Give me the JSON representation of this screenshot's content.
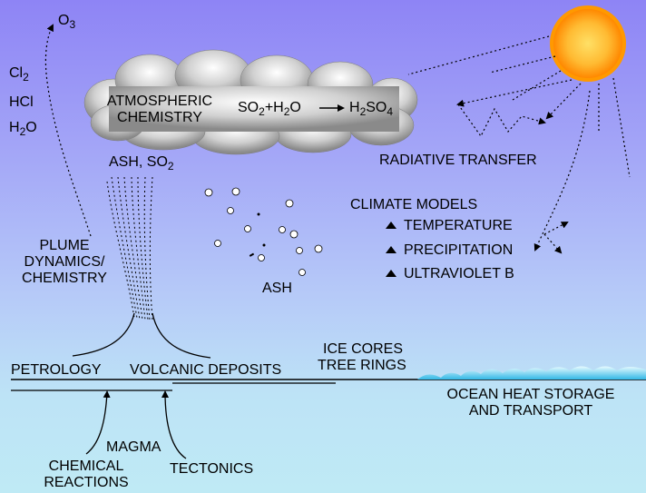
{
  "gases": {
    "o3": {
      "base": "O",
      "sub": "3"
    },
    "cl2": {
      "base": "Cl",
      "sub": "2"
    },
    "hcl": "HCl",
    "h2o": {
      "base": "H",
      "sub": "2",
      "tail": "O"
    }
  },
  "cloud": {
    "label_line1": "ATMOSPHERIC",
    "label_line2": "CHEMISTRY",
    "reactant_a": {
      "base": "SO",
      "sub": "2"
    },
    "plus": "+",
    "reactant_b": {
      "base": "H",
      "sub": "2",
      "tail": "O"
    },
    "product": {
      "pre": "H",
      "sub1": "2",
      "mid": "SO",
      "sub2": "4"
    }
  },
  "ash_so2": {
    "text": "ASH, SO",
    "sub": "2"
  },
  "radiative_transfer": "RADIATIVE TRANSFER",
  "climate_models": {
    "title": "CLIMATE MODELS",
    "items": [
      "TEMPERATURE",
      "PRECIPITATION",
      "ULTRAVIOLET B"
    ]
  },
  "plume": [
    "PLUME",
    "DYNAMICS/",
    "CHEMISTRY"
  ],
  "ash": "ASH",
  "ice_cores": "ICE CORES",
  "tree_rings": "TREE RINGS",
  "petrology": "PETROLOGY",
  "volcanic_deposits": "VOLCANIC DEPOSITS",
  "ocean": [
    "OCEAN HEAT STORAGE",
    "AND TRANSPORT"
  ],
  "magma": "MAGMA",
  "chemical_reactions": [
    "CHEMICAL",
    "REACTIONS"
  ],
  "tectonics": "TECTONICS",
  "colors": {
    "sky_top": "#8e84f5",
    "sky_bottom": "#bfeaf5",
    "sun_core": "#ffcc33",
    "sun_edge": "#ff8800",
    "cloud": "#c8c8c8",
    "ocean": "#33b8e6"
  },
  "icons": {
    "sun": "sun-icon",
    "cloud": "cloud-icon",
    "ash_particle": "ash-particle-icon",
    "triangle": "triangle-up-icon"
  }
}
